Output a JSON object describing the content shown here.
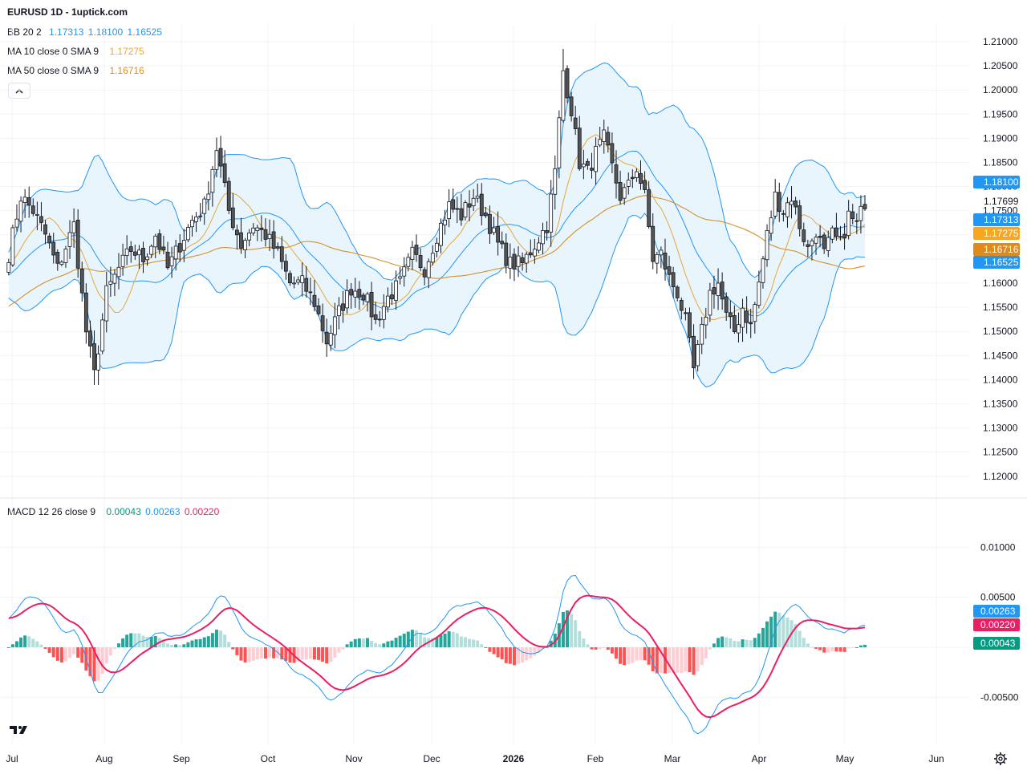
{
  "header": {
    "title": "EURUSD 1D - 1uptick.com",
    "bb_name": "BB 20 2",
    "bb_basis": "1.17313",
    "bb_upper": "1.18100",
    "bb_lower": "1.16525",
    "ma10_name": "MA 10 close 0 SMA 9",
    "ma10_value": "1.17275",
    "ma50_name": "MA 50 close 0 SMA 9",
    "ma50_value": "1.16716",
    "macd_name": "MACD 12 26 close 9",
    "macd_hist": "0.00043",
    "macd_line": "0.00263",
    "macd_signal": "0.00220"
  },
  "colors": {
    "up": "#ffffff",
    "down": "#555555",
    "wick": "#131722",
    "bb_line": "#2196f3",
    "bb_fill": "#e3f2fd",
    "ma10": "#e5a73a",
    "ma50": "#d4902a",
    "macd": "#2196f3",
    "signal": "#e91e63",
    "hist_pos_strong": "#26a69a",
    "hist_pos_weak": "#b2dfdb",
    "hist_neg_strong": "#ff5252",
    "hist_neg_weak": "#ffcdd2",
    "last_price": "#131722",
    "macd_badge": "#089981"
  },
  "icons": [
    "chevron-up-icon",
    "tradingview-logo",
    "gear-icon"
  ],
  "chart_data": {
    "type": "candlestick",
    "title": "EURUSD 1D - 1uptick.com",
    "x_labels": [
      "Jul",
      "Aug",
      "Sep",
      "Oct",
      "Nov",
      "Dec",
      "2026",
      "Feb",
      "Mar",
      "Apr",
      "May",
      "Jun"
    ],
    "price_axis": {
      "ticks": [
        "1.21000",
        "1.20500",
        "1.20000",
        "1.19500",
        "1.19000",
        "1.18500",
        "1.18000",
        "1.17500",
        "1.17000",
        "1.16500",
        "1.16000",
        "1.15500",
        "1.15000",
        "1.14500",
        "1.14000",
        "1.13500",
        "1.13000",
        "1.12500",
        "1.12000"
      ],
      "range": [
        1.1175,
        1.2125
      ]
    },
    "price_badges": [
      {
        "value": "1.18100",
        "kind": "bb_upper"
      },
      {
        "value": "1.17699",
        "kind": "last_price"
      },
      {
        "value": "1.17313",
        "kind": "bb_basis"
      },
      {
        "value": "1.17275",
        "kind": "ma10"
      },
      {
        "value": "1.16716",
        "kind": "ma50"
      },
      {
        "value": "1.16525",
        "kind": "bb_lower"
      }
    ],
    "macd_axis": {
      "ticks": [
        "0.01000",
        "0.00500",
        "-0.00500"
      ],
      "range": [
        -0.0082,
        0.0128
      ]
    },
    "macd_badges": [
      {
        "value": "0.00263",
        "kind": "macd"
      },
      {
        "value": "0.00220",
        "kind": "signal"
      },
      {
        "value": "0.00043",
        "kind": "hist"
      }
    ],
    "anchor_closes": [
      [
        0,
        1.166
      ],
      [
        3,
        1.178
      ],
      [
        6,
        1.175
      ],
      [
        9,
        1.17
      ],
      [
        12,
        1.163
      ],
      [
        16,
        1.172
      ],
      [
        19,
        1.15
      ],
      [
        21,
        1.141
      ],
      [
        24,
        1.158
      ],
      [
        27,
        1.163
      ],
      [
        30,
        1.167
      ],
      [
        33,
        1.165
      ],
      [
        36,
        1.17
      ],
      [
        39,
        1.163
      ],
      [
        42,
        1.168
      ],
      [
        45,
        1.173
      ],
      [
        48,
        1.176
      ],
      [
        51,
        1.188
      ],
      [
        54,
        1.175
      ],
      [
        57,
        1.168
      ],
      [
        60,
        1.172
      ],
      [
        63,
        1.17
      ],
      [
        66,
        1.166
      ],
      [
        69,
        1.16
      ],
      [
        72,
        1.16
      ],
      [
        75,
        1.156
      ],
      [
        78,
        1.148
      ],
      [
        81,
        1.154
      ],
      [
        84,
        1.159
      ],
      [
        87,
        1.158
      ],
      [
        90,
        1.152
      ],
      [
        93,
        1.157
      ],
      [
        96,
        1.16
      ],
      [
        99,
        1.166
      ],
      [
        102,
        1.163
      ],
      [
        105,
        1.17
      ],
      [
        108,
        1.176
      ],
      [
        111,
        1.174
      ],
      [
        114,
        1.178
      ],
      [
        117,
        1.174
      ],
      [
        120,
        1.168
      ],
      [
        123,
        1.164
      ],
      [
        126,
        1.164
      ],
      [
        129,
        1.168
      ],
      [
        132,
        1.172
      ],
      [
        134,
        1.183
      ],
      [
        136,
        1.204
      ],
      [
        138,
        1.196
      ],
      [
        140,
        1.185
      ],
      [
        142,
        1.183
      ],
      [
        144,
        1.187
      ],
      [
        146,
        1.19
      ],
      [
        148,
        1.184
      ],
      [
        150,
        1.178
      ],
      [
        152,
        1.18
      ],
      [
        154,
        1.184
      ],
      [
        156,
        1.178
      ],
      [
        158,
        1.165
      ],
      [
        160,
        1.166
      ],
      [
        162,
        1.161
      ],
      [
        164,
        1.158
      ],
      [
        166,
        1.152
      ],
      [
        168,
        1.142
      ],
      [
        170,
        1.15
      ],
      [
        172,
        1.158
      ],
      [
        174,
        1.16
      ],
      [
        176,
        1.153
      ],
      [
        178,
        1.15
      ],
      [
        180,
        1.155
      ],
      [
        182,
        1.151
      ],
      [
        184,
        1.16
      ],
      [
        186,
        1.17
      ],
      [
        188,
        1.178
      ],
      [
        190,
        1.175
      ],
      [
        192,
        1.178
      ],
      [
        194,
        1.172
      ],
      [
        196,
        1.167
      ],
      [
        198,
        1.171
      ],
      [
        200,
        1.166
      ],
      [
        202,
        1.17
      ],
      [
        204,
        1.168
      ],
      [
        206,
        1.174
      ],
      [
        208,
        1.172
      ],
      [
        210,
        1.177
      ]
    ],
    "bollinger": {
      "period": 20,
      "stddev": 2
    },
    "moving_averages": [
      {
        "name": "MA 10",
        "period": 10
      },
      {
        "name": "MA 50",
        "period": 50
      }
    ],
    "macd_params": {
      "fast": 12,
      "slow": 26,
      "signal": 9
    }
  }
}
